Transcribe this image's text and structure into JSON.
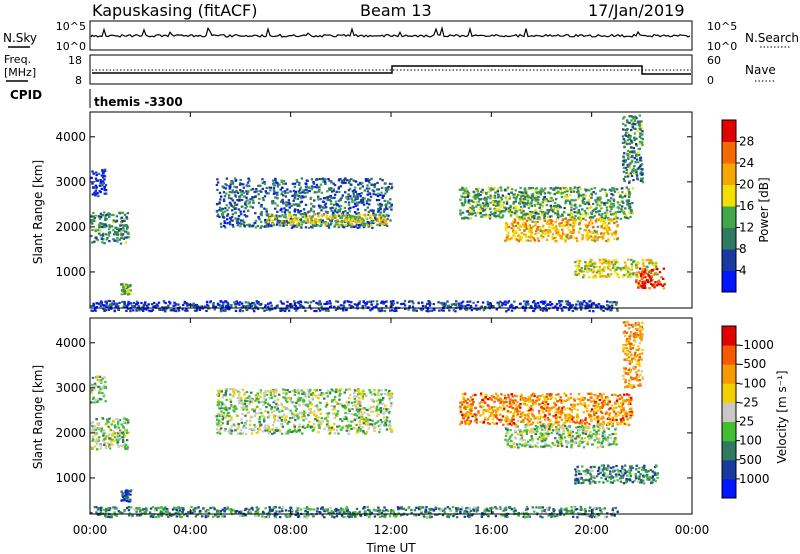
{
  "header": {
    "station": "Kapuskasing (fitACF)",
    "beam": "Beam 13",
    "date": "17/Jan/2019"
  },
  "noise_panel": {
    "left_label": "N.Sky",
    "left_ticks": [
      "10^5",
      "10^0"
    ],
    "right_label": "N.Search",
    "right_ticks": [
      "10^5",
      "10^0"
    ]
  },
  "freq_panel": {
    "label_line1": "Freq.",
    "label_line2": "[MHz]",
    "left_ticks": [
      "18",
      "8"
    ],
    "right_label": "Nave",
    "right_ticks": [
      "60",
      "0"
    ]
  },
  "cpid": {
    "label": "CPID",
    "value": "themis -3300"
  },
  "chart_data": [
    {
      "type": "heatmap",
      "name": "power",
      "ylabel": "Slant Range [km]",
      "yticks": [
        1000,
        2000,
        3000,
        4000
      ],
      "ylim": [
        200,
        4550
      ],
      "colorbar": {
        "label": "Power [dB]",
        "ticks": [
          4,
          8,
          12,
          16,
          20,
          24,
          28
        ],
        "range": [
          0,
          32
        ],
        "colors": [
          "#0015ff",
          "#173aa0",
          "#2f7a60",
          "#40a848",
          "#f4e000",
          "#f6a800",
          "#f46a00",
          "#e20000"
        ]
      },
      "regions": [
        {
          "t": [
            0.0,
            1.5
          ],
          "r": [
            1650,
            2350
          ],
          "level": 0.35
        },
        {
          "t": [
            0.0,
            0.6
          ],
          "r": [
            2700,
            3300
          ],
          "level": 0.1
        },
        {
          "t": [
            1.2,
            1.6
          ],
          "r": [
            500,
            750
          ],
          "level": 0.45
        },
        {
          "t": [
            5.0,
            12.0
          ],
          "r": [
            2000,
            3100
          ],
          "level": 0.25
        },
        {
          "t": [
            7.0,
            11.8
          ],
          "r": [
            2050,
            2300
          ],
          "level": 0.55
        },
        {
          "t": [
            0.0,
            21.0
          ],
          "r": [
            150,
            380
          ],
          "level": 0.15
        },
        {
          "t": [
            14.7,
            21.6
          ],
          "r": [
            2200,
            2900
          ],
          "level": 0.4
        },
        {
          "t": [
            16.5,
            21.0
          ],
          "r": [
            1700,
            2200
          ],
          "level": 0.65
        },
        {
          "t": [
            19.3,
            22.6
          ],
          "r": [
            900,
            1300
          ],
          "level": 0.55
        },
        {
          "t": [
            21.7,
            22.9
          ],
          "r": [
            650,
            1100
          ],
          "level": 0.9
        },
        {
          "t": [
            21.2,
            22.0
          ],
          "r": [
            3000,
            4500
          ],
          "level": 0.35
        }
      ]
    },
    {
      "type": "heatmap",
      "name": "velocity",
      "ylabel": "Slant Range [km]",
      "yticks": [
        1000,
        2000,
        3000,
        4000
      ],
      "ylim": [
        200,
        4550
      ],
      "xticks": [
        "00:00",
        "04:00",
        "08:00",
        "12:00",
        "16:00",
        "20:00",
        "00:00"
      ],
      "xlabel": "Time UT",
      "colorbar": {
        "label": "Velocity [m s⁻¹]",
        "ticks": [
          "1000",
          "500",
          "100",
          "25",
          "-25",
          "-100",
          "-500",
          "-1000"
        ],
        "colors": [
          "#0015ff",
          "#173aa0",
          "#2f7a60",
          "#40c030",
          "#c8c8c6",
          "#f2d000",
          "#f69a00",
          "#f45a00",
          "#e20000"
        ]
      },
      "regions": [
        {
          "t": [
            0.0,
            1.5
          ],
          "r": [
            1650,
            2350
          ],
          "level": 0.45
        },
        {
          "t": [
            0.0,
            0.6
          ],
          "r": [
            2700,
            3300
          ],
          "level": 0.45
        },
        {
          "t": [
            1.2,
            1.6
          ],
          "r": [
            500,
            750
          ],
          "level": 0.2
        },
        {
          "t": [
            5.0,
            12.0
          ],
          "r": [
            2000,
            3000
          ],
          "level": 0.45
        },
        {
          "t": [
            0.0,
            21.0
          ],
          "r": [
            150,
            380
          ],
          "level": 0.3
        },
        {
          "t": [
            14.7,
            21.6
          ],
          "r": [
            2200,
            2900
          ],
          "level": 0.75
        },
        {
          "t": [
            16.5,
            21.0
          ],
          "r": [
            1700,
            2200
          ],
          "level": 0.45
        },
        {
          "t": [
            19.3,
            22.6
          ],
          "r": [
            900,
            1300
          ],
          "level": 0.3
        },
        {
          "t": [
            21.2,
            22.0
          ],
          "r": [
            3000,
            4500
          ],
          "level": 0.7
        }
      ]
    }
  ]
}
